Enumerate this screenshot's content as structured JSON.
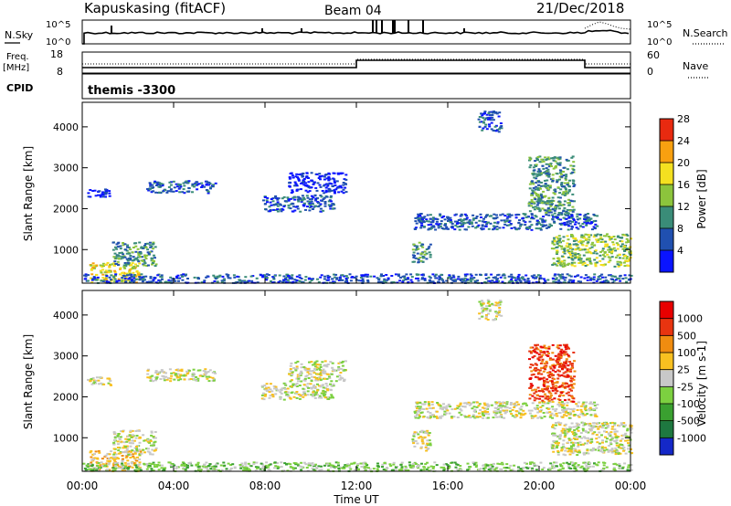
{
  "header": {
    "station": "Kapuskasing (fitACF)",
    "beam": "Beam 04",
    "date": "21/Dec/2018"
  },
  "noise_panel": {
    "left_label": "N.Sky",
    "right_label": "N.Search",
    "left_ticks": [
      "10^5",
      "10^0"
    ],
    "right_ticks": [
      "10^5",
      "10^0"
    ]
  },
  "freq_panel": {
    "left_label_top": "Freq.",
    "left_label_bottom": "[MHz]",
    "right_label": "Nave",
    "left_ticks": [
      "18",
      "8"
    ],
    "right_ticks": [
      "60",
      "0"
    ]
  },
  "cpid_panel": {
    "label": "CPID",
    "program": "themis -3300"
  },
  "chart_data": [
    {
      "type": "heatmap",
      "title": "Power",
      "ylabel": "Slant Range [km]",
      "ylim": [
        180,
        4600
      ],
      "yticks": [
        "1000",
        "2000",
        "3000",
        "4000"
      ],
      "colorbar_label": "Power [dB]",
      "colorbar_ticks": [
        "4",
        "8",
        "12",
        "16",
        "20",
        "24",
        "28"
      ],
      "colorbar_colors": [
        "#0a14ff",
        "#2050b0",
        "#3a8c78",
        "#8cc43c",
        "#f4e020",
        "#f8a010",
        "#e82a10"
      ],
      "regions": [
        {
          "t": [
            0.3,
            2.5
          ],
          "r": [
            200,
            700
          ],
          "level": 4
        },
        {
          "t": [
            1.3,
            3.2
          ],
          "r": [
            600,
            1200
          ],
          "level": 2
        },
        {
          "t": [
            0.0,
            24.0
          ],
          "r": [
            200,
            420
          ],
          "level": 1
        },
        {
          "t": [
            0.2,
            1.2
          ],
          "r": [
            2300,
            2500
          ],
          "level": 0
        },
        {
          "t": [
            2.8,
            5.8
          ],
          "r": [
            2400,
            2700
          ],
          "level": 1
        },
        {
          "t": [
            7.8,
            11.0
          ],
          "r": [
            1950,
            2350
          ],
          "level": 1
        },
        {
          "t": [
            9.0,
            11.5
          ],
          "r": [
            2400,
            2900
          ],
          "level": 0
        },
        {
          "t": [
            14.5,
            22.5
          ],
          "r": [
            1500,
            1900
          ],
          "level": 1
        },
        {
          "t": [
            14.4,
            15.2
          ],
          "r": [
            700,
            1200
          ],
          "level": 2
        },
        {
          "t": [
            20.5,
            24.0
          ],
          "r": [
            600,
            1400
          ],
          "level": 3
        },
        {
          "t": [
            19.5,
            21.5
          ],
          "r": [
            1900,
            3300
          ],
          "level": 2
        },
        {
          "t": [
            17.3,
            18.3
          ],
          "r": [
            3900,
            4400
          ],
          "level": 1
        }
      ]
    },
    {
      "type": "heatmap",
      "title": "Velocity",
      "ylabel": "Slant Range [km]",
      "ylim": [
        180,
        4600
      ],
      "yticks": [
        "1000",
        "2000",
        "3000",
        "4000"
      ],
      "colorbar_label": "Velocity [m s-1]",
      "colorbar_ticks": [
        "1000",
        "500",
        "100",
        "25",
        "-25",
        "-100",
        "-500",
        "-1000"
      ],
      "colorbar_colors": [
        "#1428c8",
        "#1e7840",
        "#3aa030",
        "#7cd040",
        "#c8c8c8",
        "#f8c020",
        "#f08c10",
        "#e83410",
        "#e80000"
      ],
      "regions": [
        {
          "t": [
            0.3,
            2.5
          ],
          "r": [
            200,
            700
          ],
          "level": 5
        },
        {
          "t": [
            1.3,
            3.2
          ],
          "r": [
            600,
            1200
          ],
          "level": 4
        },
        {
          "t": [
            0.0,
            24.0
          ],
          "r": [
            200,
            420
          ],
          "level": 3
        },
        {
          "t": [
            0.2,
            1.2
          ],
          "r": [
            2300,
            2500
          ],
          "level": 4
        },
        {
          "t": [
            2.8,
            5.8
          ],
          "r": [
            2400,
            2700
          ],
          "level": 4
        },
        {
          "t": [
            7.8,
            11.0
          ],
          "r": [
            1950,
            2350
          ],
          "level": 4
        },
        {
          "t": [
            9.0,
            11.5
          ],
          "r": [
            2400,
            2900
          ],
          "level": 4
        },
        {
          "t": [
            14.5,
            22.5
          ],
          "r": [
            1500,
            1900
          ],
          "level": 4
        },
        {
          "t": [
            14.4,
            15.2
          ],
          "r": [
            700,
            1200
          ],
          "level": 4
        },
        {
          "t": [
            20.5,
            24.0
          ],
          "r": [
            600,
            1400
          ],
          "level": 4
        },
        {
          "t": [
            19.5,
            21.5
          ],
          "r": [
            1900,
            3300
          ],
          "level": 7
        },
        {
          "t": [
            17.3,
            18.3
          ],
          "r": [
            3900,
            4400
          ],
          "level": 4
        }
      ]
    }
  ],
  "x_axis": {
    "label": "Time UT",
    "ticks": [
      "00:00",
      "04:00",
      "08:00",
      "12:00",
      "16:00",
      "20:00",
      "00:00"
    ],
    "range_hours": [
      0,
      24
    ]
  }
}
